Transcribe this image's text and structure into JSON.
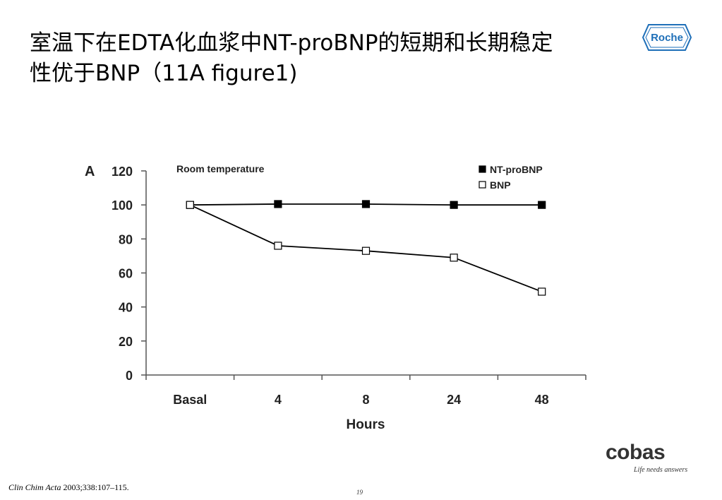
{
  "slide": {
    "title_line1": "室温下在EDTA化血浆中NT-proBNP的短期和长期稳定",
    "title_line2": "性优于BNP（11A figure1)",
    "roche_logo": "Roche",
    "cobas_logo": "cobas",
    "cobas_tagline": "Life needs answers",
    "citation_journal": "Clin Chim Acta",
    "citation_rest": " 2003;338:107–115.",
    "page_number": "19"
  },
  "chart_data": {
    "type": "line",
    "panel_label": "A",
    "annotation": "Room temperature",
    "categories": [
      "Basal",
      "4",
      "8",
      "24",
      "48"
    ],
    "xlabel": "Hours",
    "ylabel": "",
    "ylim": [
      0,
      120
    ],
    "yticks": [
      "0",
      "20",
      "40",
      "60",
      "80",
      "100",
      "120"
    ],
    "grid": false,
    "legend_position": "top-right",
    "series": [
      {
        "name": "NT-proBNP",
        "marker": "filled-square",
        "color": "#000000",
        "values": [
          100,
          100.5,
          100.5,
          100,
          100
        ]
      },
      {
        "name": "BNP",
        "marker": "open-square",
        "color": "#000000",
        "values": [
          100,
          76,
          73,
          69,
          49
        ]
      }
    ]
  }
}
